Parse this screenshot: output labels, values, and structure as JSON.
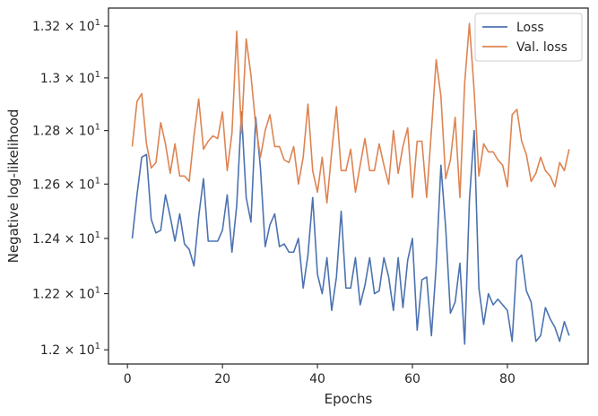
{
  "chart_data": {
    "type": "line",
    "xlabel": "Epochs",
    "ylabel": "Negative log-likelihood",
    "xlim": [
      -4,
      97
    ],
    "ylim": [
      11.95,
      13.27
    ],
    "y_scale": "log",
    "grid": false,
    "legend_position": "top-right",
    "x_ticks": [
      0,
      20,
      40,
      60,
      80
    ],
    "y_ticks": [
      {
        "value": 12.0,
        "mantissa": "1.2"
      },
      {
        "value": 12.2,
        "mantissa": "1.22"
      },
      {
        "value": 12.4,
        "mantissa": "1.24"
      },
      {
        "value": 12.6,
        "mantissa": "1.26"
      },
      {
        "value": 12.8,
        "mantissa": "1.28"
      },
      {
        "value": 13.0,
        "mantissa": "1.3"
      },
      {
        "value": 13.2,
        "mantissa": "1.32"
      }
    ],
    "y_tick_suffix": "× 10",
    "y_tick_exponent": "1",
    "series": [
      {
        "name": "Loss",
        "color": "#4c72b0",
        "x": [
          1,
          2,
          3,
          4,
          5,
          6,
          7,
          8,
          9,
          10,
          11,
          12,
          13,
          14,
          15,
          16,
          17,
          18,
          19,
          20,
          21,
          22,
          23,
          24,
          25,
          26,
          27,
          28,
          29,
          30,
          31,
          32,
          33,
          34,
          35,
          36,
          37,
          38,
          39,
          40,
          41,
          42,
          43,
          44,
          45,
          46,
          47,
          48,
          49,
          50,
          51,
          52,
          53,
          54,
          55,
          56,
          57,
          58,
          59,
          60,
          61,
          62,
          63,
          64,
          65,
          66,
          67,
          68,
          69,
          70,
          71,
          72,
          73,
          74,
          75,
          76,
          77,
          78,
          79,
          80,
          81,
          82,
          83,
          84,
          85,
          86,
          87,
          88,
          89,
          90,
          91,
          92,
          93
        ],
        "values": [
          12.4,
          12.56,
          12.7,
          12.71,
          12.47,
          12.42,
          12.43,
          12.56,
          12.48,
          12.39,
          12.49,
          12.38,
          12.36,
          12.3,
          12.48,
          12.62,
          12.39,
          12.39,
          12.39,
          12.43,
          12.56,
          12.35,
          12.52,
          12.87,
          12.55,
          12.46,
          12.85,
          12.66,
          12.37,
          12.45,
          12.49,
          12.37,
          12.38,
          12.35,
          12.35,
          12.4,
          12.22,
          12.34,
          12.55,
          12.27,
          12.2,
          12.33,
          12.14,
          12.26,
          12.5,
          12.22,
          12.22,
          12.33,
          12.16,
          12.23,
          12.33,
          12.2,
          12.21,
          12.33,
          12.26,
          12.14,
          12.33,
          12.15,
          12.32,
          12.4,
          12.07,
          12.25,
          12.26,
          12.05,
          12.3,
          12.67,
          12.44,
          12.13,
          12.17,
          12.31,
          12.02,
          12.54,
          12.8,
          12.22,
          12.09,
          12.2,
          12.16,
          12.18,
          12.16,
          12.14,
          12.03,
          12.32,
          12.34,
          12.21,
          12.17,
          12.03,
          12.05,
          12.15,
          12.11,
          12.08,
          12.03,
          12.1,
          12.05
        ]
      },
      {
        "name": "Val. loss",
        "color": "#dd8452",
        "x": [
          1,
          2,
          3,
          4,
          5,
          6,
          7,
          8,
          9,
          10,
          11,
          12,
          13,
          14,
          15,
          16,
          17,
          18,
          19,
          20,
          21,
          22,
          23,
          24,
          25,
          26,
          27,
          28,
          29,
          30,
          31,
          32,
          33,
          34,
          35,
          36,
          37,
          38,
          39,
          40,
          41,
          42,
          43,
          44,
          45,
          46,
          47,
          48,
          49,
          50,
          51,
          52,
          53,
          54,
          55,
          56,
          57,
          58,
          59,
          60,
          61,
          62,
          63,
          64,
          65,
          66,
          67,
          68,
          69,
          70,
          71,
          72,
          73,
          74,
          75,
          76,
          77,
          78,
          79,
          80,
          81,
          82,
          83,
          84,
          85,
          86,
          87,
          88,
          89,
          90,
          91,
          92,
          93
        ],
        "values": [
          12.74,
          12.91,
          12.94,
          12.75,
          12.66,
          12.68,
          12.83,
          12.75,
          12.64,
          12.75,
          12.63,
          12.63,
          12.61,
          12.78,
          12.92,
          12.73,
          12.76,
          12.78,
          12.77,
          12.87,
          12.65,
          12.79,
          13.18,
          12.79,
          13.15,
          13.01,
          12.82,
          12.7,
          12.8,
          12.86,
          12.74,
          12.74,
          12.69,
          12.68,
          12.74,
          12.6,
          12.7,
          12.9,
          12.65,
          12.57,
          12.7,
          12.53,
          12.72,
          12.89,
          12.65,
          12.65,
          12.73,
          12.57,
          12.67,
          12.77,
          12.65,
          12.65,
          12.75,
          12.67,
          12.6,
          12.8,
          12.64,
          12.74,
          12.81,
          12.55,
          12.76,
          12.76,
          12.55,
          12.8,
          13.07,
          12.93,
          12.62,
          12.69,
          12.85,
          12.55,
          12.98,
          13.21,
          12.95,
          12.63,
          12.75,
          12.72,
          12.72,
          12.69,
          12.67,
          12.59,
          12.86,
          12.88,
          12.76,
          12.71,
          12.61,
          12.64,
          12.7,
          12.65,
          12.63,
          12.59,
          12.68,
          12.65,
          12.73
        ]
      }
    ]
  }
}
